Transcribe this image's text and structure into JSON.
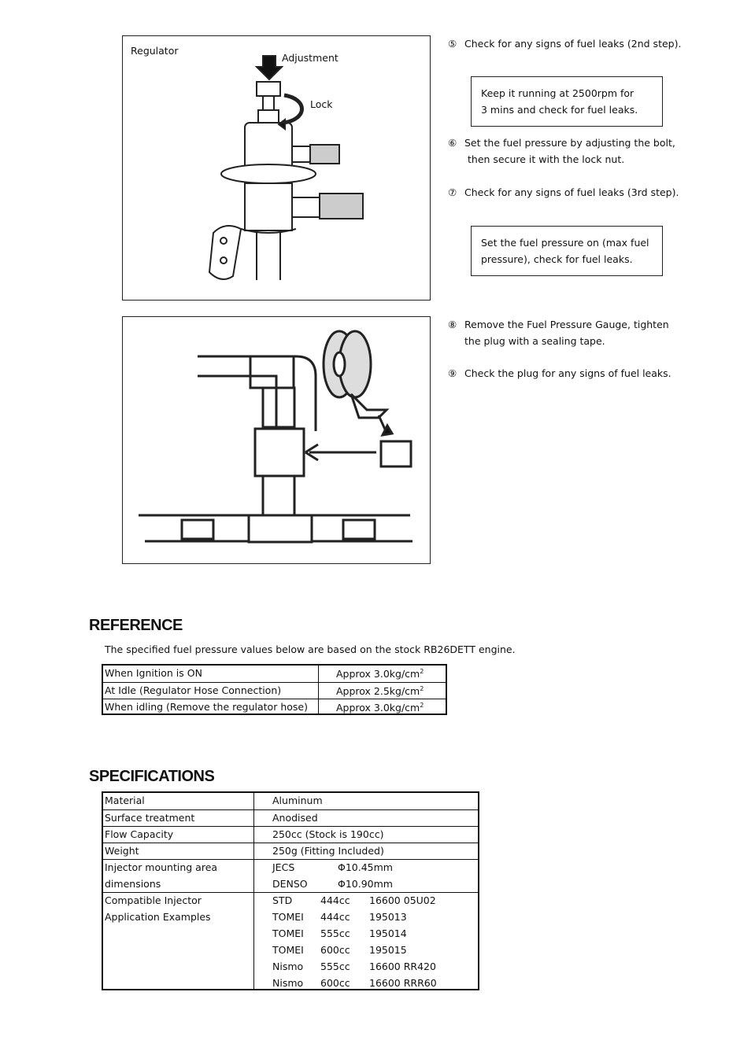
{
  "figure1": {
    "labels": {
      "regulator": "Regulator",
      "adjustment": "Adjustment",
      "lock": "Lock"
    }
  },
  "steps": [
    {
      "num": "⑤",
      "lines": [
        "Check for any signs of fuel leaks (2nd step)."
      ],
      "note": [
        "Keep it running at 2500rpm for",
        "3 mins and check for fuel leaks."
      ]
    },
    {
      "num": "⑥",
      "lines": [
        "Set the fuel pressure by adjusting the bolt,",
        "then secure it with the lock nut."
      ]
    },
    {
      "num": "⑦",
      "lines": [
        "Check for any signs of fuel leaks (3rd step)."
      ],
      "note": [
        "Set the fuel pressure on (max fuel",
        "pressure), check for fuel leaks."
      ]
    },
    {
      "num": "⑧",
      "lines": [
        "Remove the Fuel Pressure Gauge, tighten",
        "the plug with a sealing tape."
      ]
    },
    {
      "num": "⑨",
      "lines": [
        "Check the plug for any signs of fuel leaks."
      ]
    }
  ],
  "reference": {
    "title": "REFERENCE",
    "intro": "The specified fuel pressure values below are based on the stock RB26DETT engine.",
    "rows": [
      {
        "label": "When Ignition is ON",
        "value": "Approx 3.0kg/cm",
        "sup": "2"
      },
      {
        "label": "At Idle (Regulator Hose Connection)",
        "value": "Approx 2.5kg/cm",
        "sup": "2"
      },
      {
        "label": "When idling (Remove the regulator hose)",
        "value": "Approx 3.0kg/cm",
        "sup": "2"
      }
    ]
  },
  "specifications": {
    "title": "SPECIFICATIONS",
    "rows": [
      {
        "label": [
          "Material"
        ],
        "value": [
          [
            "Aluminum"
          ]
        ]
      },
      {
        "label": [
          "Surface treatment"
        ],
        "value": [
          [
            "Anodised"
          ]
        ]
      },
      {
        "label": [
          "Flow Capacity"
        ],
        "value": [
          [
            "250cc (Stock is 190cc)"
          ]
        ]
      },
      {
        "label": [
          "Weight"
        ],
        "value": [
          [
            "250g (Fitting Included)"
          ]
        ]
      },
      {
        "label": [
          "Injector mounting area",
          "dimensions"
        ],
        "value": [
          [
            "JECS",
            "Φ10.45mm"
          ],
          [
            "DENSO",
            "Φ10.90mm"
          ]
        ]
      },
      {
        "label": [
          "Compatible Injector",
          "Application Examples"
        ],
        "value": [
          [
            "STD",
            "444cc",
            "16600 05U02"
          ],
          [
            "TOMEI",
            "444cc",
            "195013"
          ],
          [
            "TOMEI",
            "555cc",
            "195014"
          ],
          [
            "TOMEI",
            "600cc",
            "195015"
          ],
          [
            "Nismo",
            "555cc",
            "16600 RR420"
          ],
          [
            "Nismo",
            "600cc",
            "16600 RRR60"
          ]
        ]
      }
    ]
  }
}
